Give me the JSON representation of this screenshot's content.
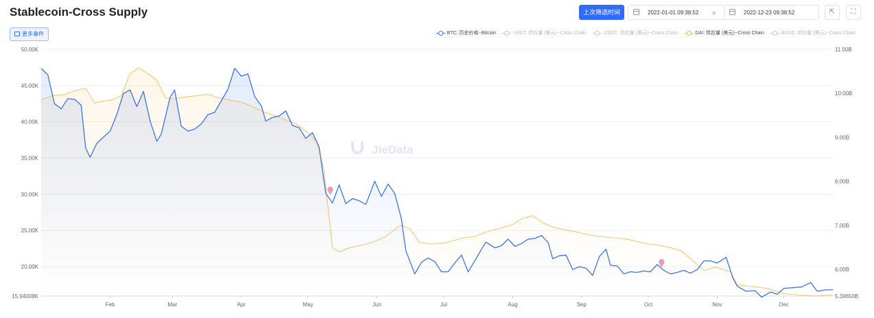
{
  "page": {
    "title": "Stablecoin-Cross Supply",
    "last_filter_button": "上次筛选时间",
    "start_date": "2022-01-01 09:38:52",
    "end_date": "2022-12-23 09:38:52",
    "more_events_button": "更多事件",
    "watermark": "JieData",
    "icons": [
      "calendar-icon",
      "range-separator-icon",
      "export-icon",
      "fullscreen-icon",
      "event-pin-icon"
    ]
  },
  "chart_data": {
    "type": "line",
    "title": "Stablecoin-Cross Supply",
    "x_ticks": [
      "Feb",
      "Mar",
      "Apr",
      "May",
      "Jun",
      "Jul",
      "Aug",
      "Sep",
      "Oct",
      "Nov",
      "Dec"
    ],
    "x_range": [
      "2022-01-01",
      "2022-12-23"
    ],
    "y_left": {
      "ticks": [
        "15.94008K",
        "20.00K",
        "25.00K",
        "30.00K",
        "35.00K",
        "40.00K",
        "45.00K",
        "50.00K"
      ],
      "min": 15940.08,
      "max": 50000
    },
    "y_right": {
      "ticks": [
        "5.39650B",
        "6.00B",
        "7.00B",
        "8.00B",
        "9.00B",
        "10.00B",
        "11.00B"
      ],
      "min": 5.3965,
      "max": 11.0
    },
    "grid": true,
    "legend_position": "top-right",
    "legend": [
      {
        "label": "BTC: 历史价格--Bitcoin",
        "color": "#3d73e6",
        "active": true
      },
      {
        "label": "USDT: 供应量 (美元)--Cross Chain",
        "color": "#c8c8c8",
        "active": false
      },
      {
        "label": "USDC: 供应量 (美元)--Cross Chain",
        "color": "#c8c8c8",
        "active": false
      },
      {
        "label": "DAI: 供应量 (美元)--Cross Chain",
        "color": "#f5b94f",
        "active": true
      },
      {
        "label": "BUSD: 供应量 (美元)--Cross Chain",
        "color": "#c8c8c8",
        "active": false
      }
    ],
    "series": [
      {
        "name": "BTC: 历史价格--Bitcoin",
        "axis": "left",
        "color": "#3d73e6",
        "unit": "USD",
        "points": [
          [
            "2022-01-01",
            47400
          ],
          [
            "2022-01-04",
            46500
          ],
          [
            "2022-01-07",
            42500
          ],
          [
            "2022-01-10",
            41800
          ],
          [
            "2022-01-13",
            43200
          ],
          [
            "2022-01-16",
            43100
          ],
          [
            "2022-01-19",
            42300
          ],
          [
            "2022-01-21",
            36400
          ],
          [
            "2022-01-23",
            35100
          ],
          [
            "2022-01-26",
            37000
          ],
          [
            "2022-01-29",
            37900
          ],
          [
            "2022-02-01",
            38700
          ],
          [
            "2022-02-04",
            41000
          ],
          [
            "2022-02-07",
            43900
          ],
          [
            "2022-02-10",
            44400
          ],
          [
            "2022-02-13",
            42100
          ],
          [
            "2022-02-16",
            44200
          ],
          [
            "2022-02-19",
            40100
          ],
          [
            "2022-02-22",
            37300
          ],
          [
            "2022-02-24",
            38300
          ],
          [
            "2022-02-28",
            43400
          ],
          [
            "2022-03-02",
            44400
          ],
          [
            "2022-03-05",
            39400
          ],
          [
            "2022-03-08",
            38700
          ],
          [
            "2022-03-11",
            39000
          ],
          [
            "2022-03-14",
            39700
          ],
          [
            "2022-03-17",
            41000
          ],
          [
            "2022-03-20",
            41300
          ],
          [
            "2022-03-23",
            42900
          ],
          [
            "2022-03-26",
            44500
          ],
          [
            "2022-03-29",
            47400
          ],
          [
            "2022-04-01",
            46300
          ],
          [
            "2022-04-04",
            46600
          ],
          [
            "2022-04-07",
            43500
          ],
          [
            "2022-04-10",
            42200
          ],
          [
            "2022-04-12",
            40100
          ],
          [
            "2022-04-15",
            40600
          ],
          [
            "2022-04-18",
            40800
          ],
          [
            "2022-04-21",
            41500
          ],
          [
            "2022-04-24",
            39500
          ],
          [
            "2022-04-27",
            39200
          ],
          [
            "2022-04-30",
            37700
          ],
          [
            "2022-05-03",
            38500
          ],
          [
            "2022-05-06",
            36500
          ],
          [
            "2022-05-09",
            30100
          ],
          [
            "2022-05-12",
            28800
          ],
          [
            "2022-05-15",
            31300
          ],
          [
            "2022-05-18",
            28700
          ],
          [
            "2022-05-21",
            29400
          ],
          [
            "2022-05-24",
            29100
          ],
          [
            "2022-05-27",
            28600
          ],
          [
            "2022-05-31",
            31800
          ],
          [
            "2022-06-03",
            29700
          ],
          [
            "2022-06-06",
            31400
          ],
          [
            "2022-06-09",
            30100
          ],
          [
            "2022-06-12",
            26600
          ],
          [
            "2022-06-14",
            22200
          ],
          [
            "2022-06-18",
            19000
          ],
          [
            "2022-06-21",
            20600
          ],
          [
            "2022-06-24",
            21200
          ],
          [
            "2022-06-27",
            20700
          ],
          [
            "2022-06-30",
            19300
          ],
          [
            "2022-07-03",
            19300
          ],
          [
            "2022-07-06",
            20500
          ],
          [
            "2022-07-09",
            21600
          ],
          [
            "2022-07-12",
            19300
          ],
          [
            "2022-07-15",
            20800
          ],
          [
            "2022-07-18",
            22400
          ],
          [
            "2022-07-20",
            23400
          ],
          [
            "2022-07-24",
            22600
          ],
          [
            "2022-07-27",
            22900
          ],
          [
            "2022-07-30",
            23800
          ],
          [
            "2022-08-02",
            22800
          ],
          [
            "2022-08-05",
            23200
          ],
          [
            "2022-08-08",
            23800
          ],
          [
            "2022-08-11",
            23900
          ],
          [
            "2022-08-14",
            24300
          ],
          [
            "2022-08-17",
            23300
          ],
          [
            "2022-08-19",
            21100
          ],
          [
            "2022-08-22",
            21500
          ],
          [
            "2022-08-25",
            21600
          ],
          [
            "2022-08-28",
            19600
          ],
          [
            "2022-08-31",
            20000
          ],
          [
            "2022-09-03",
            19800
          ],
          [
            "2022-09-06",
            18800
          ],
          [
            "2022-09-09",
            21400
          ],
          [
            "2022-09-12",
            22400
          ],
          [
            "2022-09-14",
            20200
          ],
          [
            "2022-09-17",
            20100
          ],
          [
            "2022-09-20",
            19000
          ],
          [
            "2022-09-23",
            19300
          ],
          [
            "2022-09-26",
            19200
          ],
          [
            "2022-09-29",
            19400
          ],
          [
            "2022-10-02",
            19300
          ],
          [
            "2022-10-05",
            20300
          ],
          [
            "2022-10-08",
            19500
          ],
          [
            "2022-10-11",
            19000
          ],
          [
            "2022-10-14",
            19200
          ],
          [
            "2022-10-17",
            19500
          ],
          [
            "2022-10-20",
            19100
          ],
          [
            "2022-10-23",
            19600
          ],
          [
            "2022-10-26",
            20800
          ],
          [
            "2022-10-29",
            20800
          ],
          [
            "2022-11-01",
            20500
          ],
          [
            "2022-11-05",
            21300
          ],
          [
            "2022-11-08",
            18500
          ],
          [
            "2022-11-10",
            17300
          ],
          [
            "2022-11-14",
            16600
          ],
          [
            "2022-11-18",
            16700
          ],
          [
            "2022-11-21",
            15800
          ],
          [
            "2022-11-25",
            16500
          ],
          [
            "2022-11-28",
            16200
          ],
          [
            "2022-12-01",
            17000
          ],
          [
            "2022-12-05",
            17100
          ],
          [
            "2022-12-09",
            17200
          ],
          [
            "2022-12-13",
            17800
          ],
          [
            "2022-12-16",
            16600
          ],
          [
            "2022-12-20",
            16800
          ],
          [
            "2022-12-23",
            16800
          ]
        ]
      },
      {
        "name": "DAI: 供应量 (美元)--Cross Chain",
        "axis": "right",
        "color": "#f5b94f",
        "unit": "USD (B)",
        "points": [
          [
            "2022-01-01",
            9.85
          ],
          [
            "2022-01-06",
            9.95
          ],
          [
            "2022-01-11",
            9.97
          ],
          [
            "2022-01-16",
            10.05
          ],
          [
            "2022-01-21",
            10.12
          ],
          [
            "2022-01-25",
            9.78
          ],
          [
            "2022-01-29",
            9.83
          ],
          [
            "2022-02-02",
            9.85
          ],
          [
            "2022-02-06",
            9.95
          ],
          [
            "2022-02-10",
            10.45
          ],
          [
            "2022-02-14",
            10.58
          ],
          [
            "2022-02-18",
            10.45
          ],
          [
            "2022-02-22",
            10.3
          ],
          [
            "2022-02-26",
            9.9
          ],
          [
            "2022-03-02",
            9.88
          ],
          [
            "2022-03-07",
            9.92
          ],
          [
            "2022-03-12",
            9.95
          ],
          [
            "2022-03-17",
            9.98
          ],
          [
            "2022-03-22",
            9.9
          ],
          [
            "2022-03-27",
            9.85
          ],
          [
            "2022-04-01",
            9.8
          ],
          [
            "2022-04-06",
            9.7
          ],
          [
            "2022-04-11",
            9.58
          ],
          [
            "2022-04-16",
            9.5
          ],
          [
            "2022-04-21",
            9.4
          ],
          [
            "2022-04-26",
            9.3
          ],
          [
            "2022-05-01",
            9.1
          ],
          [
            "2022-05-05",
            8.9
          ],
          [
            "2022-05-08",
            8.3
          ],
          [
            "2022-05-10",
            7.4
          ],
          [
            "2022-05-12",
            6.5
          ],
          [
            "2022-05-15",
            6.4
          ],
          [
            "2022-05-20",
            6.5
          ],
          [
            "2022-05-25",
            6.55
          ],
          [
            "2022-05-30",
            6.62
          ],
          [
            "2022-06-05",
            6.75
          ],
          [
            "2022-06-10",
            6.95
          ],
          [
            "2022-06-12",
            7.0
          ],
          [
            "2022-06-16",
            6.92
          ],
          [
            "2022-06-20",
            6.62
          ],
          [
            "2022-06-25",
            6.58
          ],
          [
            "2022-07-01",
            6.6
          ],
          [
            "2022-07-05",
            6.65
          ],
          [
            "2022-07-10",
            6.72
          ],
          [
            "2022-07-15",
            6.75
          ],
          [
            "2022-07-20",
            6.85
          ],
          [
            "2022-07-25",
            6.92
          ],
          [
            "2022-08-01",
            7.02
          ],
          [
            "2022-08-05",
            7.15
          ],
          [
            "2022-08-10",
            7.22
          ],
          [
            "2022-08-15",
            7.05
          ],
          [
            "2022-08-20",
            6.95
          ],
          [
            "2022-08-25",
            6.9
          ],
          [
            "2022-08-30",
            6.85
          ],
          [
            "2022-09-05",
            6.78
          ],
          [
            "2022-09-10",
            6.75
          ],
          [
            "2022-09-15",
            6.72
          ],
          [
            "2022-09-20",
            6.7
          ],
          [
            "2022-09-25",
            6.65
          ],
          [
            "2022-10-01",
            6.58
          ],
          [
            "2022-10-06",
            6.55
          ],
          [
            "2022-10-11",
            6.5
          ],
          [
            "2022-10-16",
            6.42
          ],
          [
            "2022-10-21",
            6.2
          ],
          [
            "2022-10-26",
            5.98
          ],
          [
            "2022-10-31",
            6.05
          ],
          [
            "2022-11-04",
            6.0
          ],
          [
            "2022-11-07",
            5.95
          ],
          [
            "2022-11-10",
            5.65
          ],
          [
            "2022-11-15",
            5.62
          ],
          [
            "2022-11-20",
            5.6
          ],
          [
            "2022-11-25",
            5.55
          ],
          [
            "2022-12-01",
            5.45
          ],
          [
            "2022-12-08",
            5.42
          ],
          [
            "2022-12-15",
            5.4
          ],
          [
            "2022-12-23",
            5.42
          ]
        ]
      }
    ],
    "event_markers": [
      {
        "date": "2022-05-11",
        "value": 30500
      },
      {
        "date": "2022-10-07",
        "value": 20500
      }
    ]
  }
}
